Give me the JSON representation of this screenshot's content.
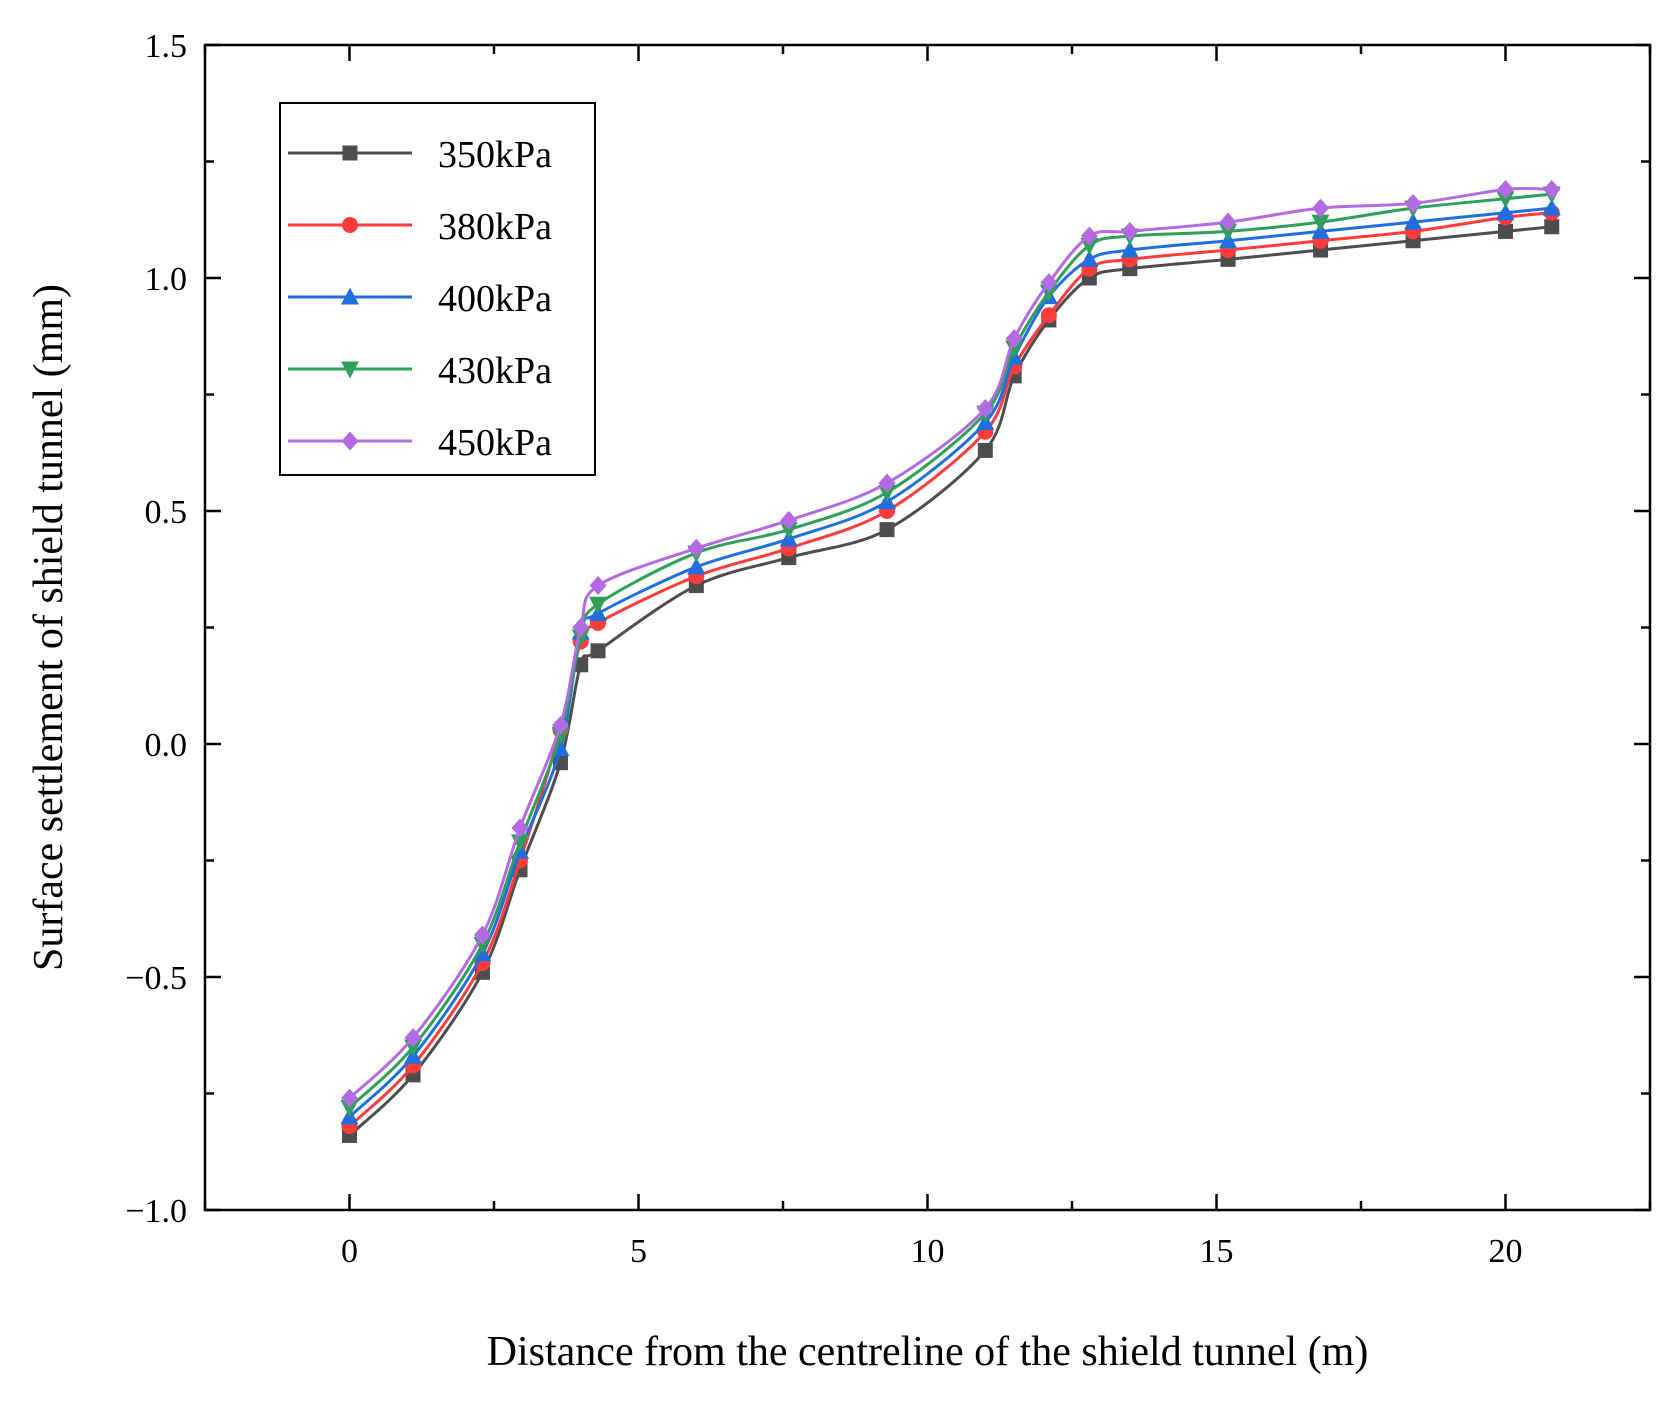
{
  "chart_data": {
    "type": "line",
    "title": "",
    "xlabel": "Distance from the centreline of the shield tunnel (m)",
    "ylabel": "Surface settlement of shield tunnel (mm)",
    "xlim": [
      -2.5,
      22.5
    ],
    "ylim": [
      -1.0,
      1.5
    ],
    "x_major_ticks": [
      0,
      5,
      10,
      15,
      20
    ],
    "x_tick_labels": [
      "0",
      "5",
      "10",
      "15",
      "20"
    ],
    "y_major_ticks": [
      -1.0,
      -0.5,
      0.0,
      0.5,
      1.0,
      1.5
    ],
    "y_tick_labels": [
      "−1.0",
      "−0.5",
      "0.0",
      "0.5",
      "1.0",
      "1.5"
    ],
    "grid": false,
    "legend_position": "top-left",
    "x": [
      0,
      1.1,
      2.3,
      2.95,
      3.65,
      4.0,
      4.3,
      6.0,
      7.6,
      9.3,
      11.0,
      11.5,
      12.1,
      12.8,
      13.5,
      15.2,
      16.8,
      18.4,
      20.0,
      20.8
    ],
    "series": [
      {
        "name": "350kPa",
        "color": "#4d4d4d",
        "marker": "square",
        "values": [
          -0.84,
          -0.71,
          -0.49,
          -0.27,
          -0.04,
          0.17,
          0.2,
          0.34,
          0.4,
          0.46,
          0.63,
          0.79,
          0.91,
          1.0,
          1.02,
          1.04,
          1.06,
          1.08,
          1.1,
          1.11
        ]
      },
      {
        "name": "380kPa",
        "color": "#ff3b3b",
        "marker": "circle",
        "values": [
          -0.82,
          -0.69,
          -0.47,
          -0.25,
          0.03,
          0.22,
          0.26,
          0.36,
          0.42,
          0.5,
          0.67,
          0.81,
          0.92,
          1.02,
          1.04,
          1.06,
          1.08,
          1.1,
          1.13,
          1.14
        ]
      },
      {
        "name": "400kPa",
        "color": "#1f6fe0",
        "marker": "triangle-up",
        "values": [
          -0.8,
          -0.67,
          -0.45,
          -0.23,
          -0.01,
          0.24,
          0.28,
          0.38,
          0.44,
          0.52,
          0.69,
          0.83,
          0.96,
          1.04,
          1.06,
          1.08,
          1.1,
          1.12,
          1.14,
          1.15
        ]
      },
      {
        "name": "430kPa",
        "color": "#2ea05a",
        "marker": "triangle-down",
        "values": [
          -0.78,
          -0.65,
          -0.43,
          -0.21,
          0.02,
          0.23,
          0.3,
          0.41,
          0.46,
          0.54,
          0.71,
          0.85,
          0.97,
          1.07,
          1.09,
          1.1,
          1.12,
          1.15,
          1.17,
          1.18
        ]
      },
      {
        "name": "450kPa",
        "color": "#b36ae2",
        "marker": "diamond",
        "values": [
          -0.76,
          -0.63,
          -0.41,
          -0.18,
          0.04,
          0.25,
          0.34,
          0.42,
          0.48,
          0.56,
          0.72,
          0.87,
          0.99,
          1.09,
          1.1,
          1.12,
          1.15,
          1.16,
          1.19,
          1.19
        ]
      }
    ]
  }
}
